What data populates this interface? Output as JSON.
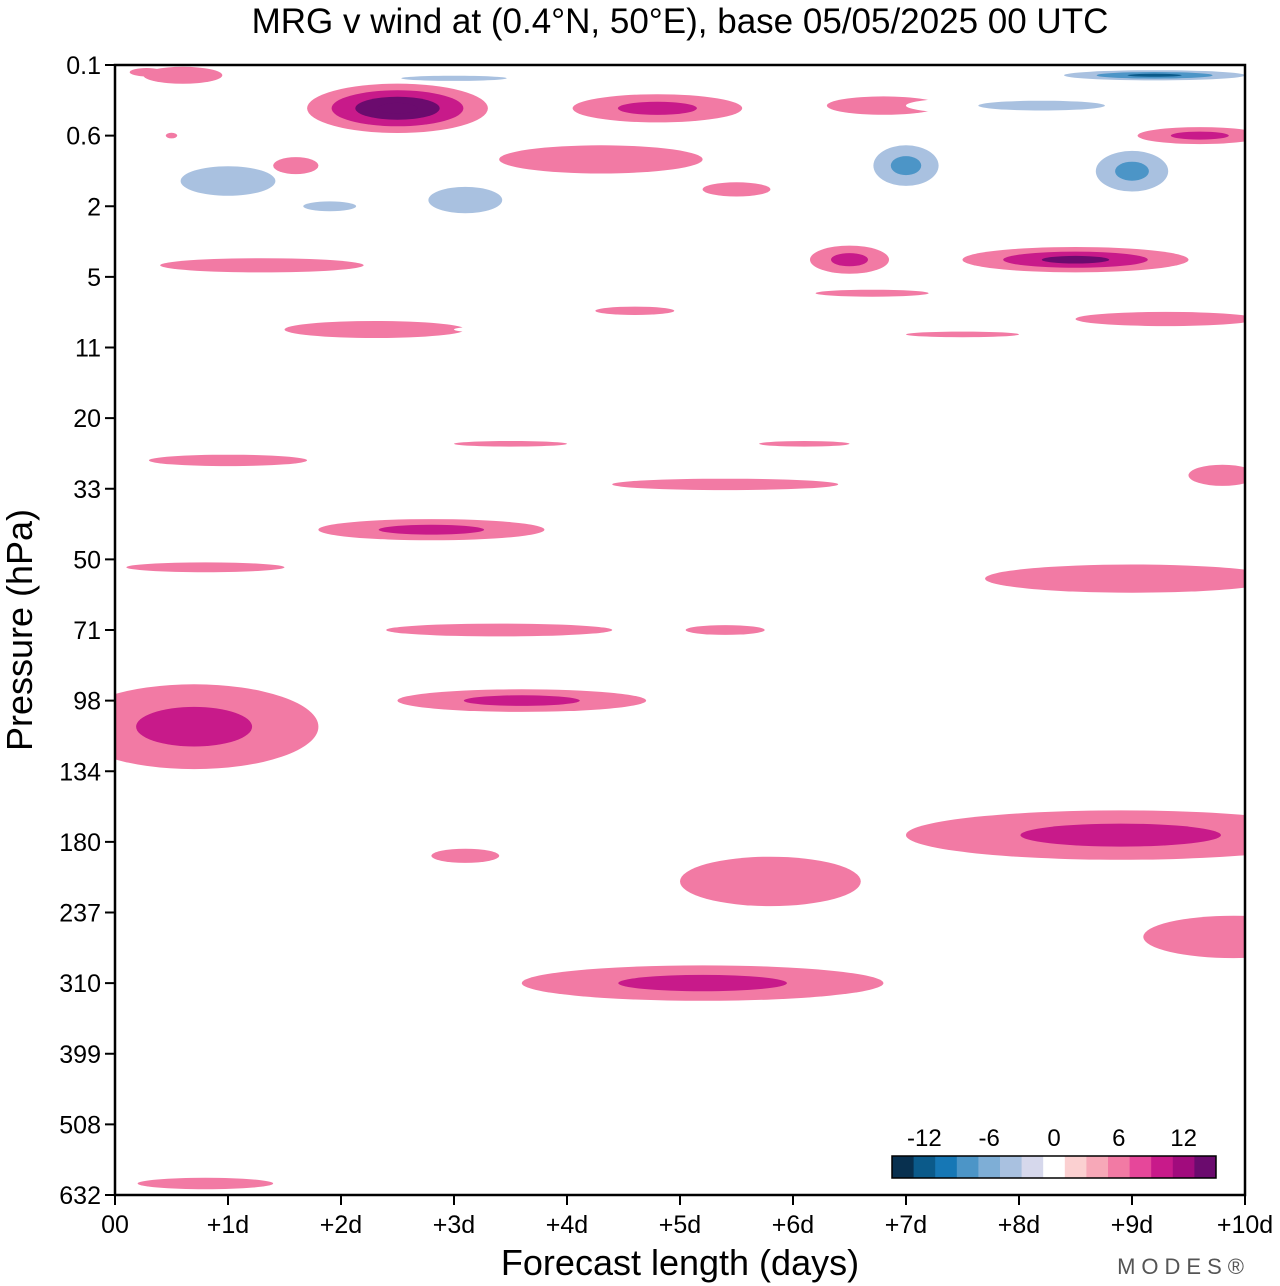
{
  "chart_data": {
    "type": "heatmap",
    "title": "MRG v wind at (0.4°N, 50°E),  base 05/05/2025  00 UTC",
    "xlabel": "Forecast length (days)",
    "ylabel": "Pressure (hPa)",
    "x_ticks": [
      "00",
      "+1d",
      "+2d",
      "+3d",
      "+4d",
      "+5d",
      "+6d",
      "+7d",
      "+8d",
      "+9d",
      "+10d"
    ],
    "xlim": [
      0,
      10
    ],
    "y_ticks": [
      "0.1",
      "0.6",
      "2",
      "5",
      "11",
      "20",
      "33",
      "50",
      "71",
      "98",
      "134",
      "180",
      "237",
      "310",
      "399",
      "508",
      "632"
    ],
    "ylim": [
      0.1,
      632
    ],
    "y_reversed": true,
    "colorbar": {
      "labels": [
        "-12",
        "-6",
        "0",
        "6",
        "12"
      ],
      "label_values": [
        -12,
        -6,
        0,
        6,
        12
      ],
      "levels": [
        -15,
        -13.5,
        -12,
        -10.5,
        -9,
        -7.5,
        -6,
        -4.5,
        -3,
        -1.5,
        1.5,
        3,
        4.5,
        6,
        7.5,
        9,
        10.5,
        12,
        13.5,
        15
      ],
      "colors": [
        "#08304f",
        "#0b5a8a",
        "#1677b5",
        "#4c95c7",
        "#7eaed6",
        "#a9c1e0",
        "#d6d8ec",
        "#ffffff",
        "#fbd0d1",
        "#f7a8b8",
        "#f27aa4",
        "#e6479a",
        "#c81a8a",
        "#a10b7d",
        "#6b0b6e"
      ]
    },
    "blobs": [
      {
        "day": 0.6,
        "p": 0.13,
        "dd": 0.35,
        "dl": 0.12,
        "v": [
          3
        ]
      },
      {
        "day": 0.28,
        "p": 0.12,
        "dd": 0.15,
        "dl": 0.06,
        "v": [
          3
        ]
      },
      {
        "day": 0.5,
        "p": 0.6,
        "dd": 0.05,
        "dl": 0.04,
        "v": [
          3
        ]
      },
      {
        "day": 1.0,
        "p": 1.3,
        "dd": 0.9,
        "dl": 0.45,
        "v": [
          -3,
          -6
        ]
      },
      {
        "day": 0.25,
        "p": 1.3,
        "dd": 0.3,
        "dl": 0.4,
        "v": [
          -3
        ]
      },
      {
        "day": 1.9,
        "p": 2.0,
        "dd": 0.5,
        "dl": 0.15,
        "v": [
          -3,
          -6
        ]
      },
      {
        "day": 1.9,
        "p": 0.4,
        "dd": 0.2,
        "dl": 0.25,
        "v": [
          -3
        ]
      },
      {
        "day": 2.5,
        "p": 0.3,
        "dd": 0.8,
        "dl": 0.35,
        "v": [
          3,
          6,
          9,
          12
        ]
      },
      {
        "day": 1.6,
        "p": 1.0,
        "dd": 0.2,
        "dl": 0.12,
        "v": [
          3
        ]
      },
      {
        "day": 3.0,
        "p": 0.14,
        "dd": 1.0,
        "dl": 0.08,
        "v": [
          -3,
          -6
        ]
      },
      {
        "day": 3.1,
        "p": 1.8,
        "dd": 0.7,
        "dl": 0.4,
        "v": [
          -3,
          -6
        ]
      },
      {
        "day": 4.0,
        "p": 2.6,
        "dd": 0.3,
        "dl": 0.15,
        "v": [
          -3
        ]
      },
      {
        "day": 4.3,
        "p": 0.9,
        "dd": 0.9,
        "dl": 0.2,
        "v": [
          3
        ]
      },
      {
        "day": 4.8,
        "p": 0.3,
        "dd": 0.75,
        "dl": 0.2,
        "v": [
          3,
          6
        ]
      },
      {
        "day": 6.0,
        "p": 2.2,
        "dd": 0.9,
        "dl": 0.3,
        "v": [
          -3
        ]
      },
      {
        "day": 5.5,
        "p": 1.5,
        "dd": 0.3,
        "dl": 0.1,
        "v": [
          3
        ]
      },
      {
        "day": 6.1,
        "p": 1.0,
        "dd": 0.25,
        "dl": 0.4,
        "v": [
          -3
        ]
      },
      {
        "day": 6.8,
        "p": 0.28,
        "dd": 0.5,
        "dl": 0.13,
        "v": [
          3
        ]
      },
      {
        "day": 7.0,
        "p": 1.0,
        "dd": 0.45,
        "dl": 0.45,
        "v": [
          -3,
          -6,
          -9
        ]
      },
      {
        "day": 6.5,
        "p": 4.0,
        "dd": 0.35,
        "dl": 0.2,
        "v": [
          3,
          6
        ]
      },
      {
        "day": 8.2,
        "p": 0.28,
        "dd": 1.2,
        "dl": 0.15,
        "v": [
          -3,
          -6
        ]
      },
      {
        "day": 9.2,
        "p": 0.13,
        "dd": 1.1,
        "dl": 0.1,
        "v": [
          -3,
          -6,
          -9,
          -12
        ]
      },
      {
        "day": 9.0,
        "p": 1.1,
        "dd": 0.5,
        "dl": 0.45,
        "v": [
          -3,
          -6,
          -9
        ]
      },
      {
        "day": 9.6,
        "p": 0.6,
        "dd": 0.55,
        "dl": 0.12,
        "v": [
          3,
          6
        ]
      },
      {
        "day": 8.5,
        "p": 4.0,
        "dd": 1.0,
        "dl": 0.18,
        "v": [
          3,
          6,
          9
        ]
      },
      {
        "day": 8.0,
        "p": 1.8,
        "dd": 0.2,
        "dl": 0.12,
        "v": [
          -3
        ]
      },
      {
        "day": 8.2,
        "p": 6.0,
        "dd": 0.8,
        "dl": 0.1,
        "v": [
          -3
        ]
      },
      {
        "day": 9.8,
        "p": 5.5,
        "dd": 0.6,
        "dl": 0.1,
        "v": [
          -3
        ]
      },
      {
        "day": 1.3,
        "p": 4.3,
        "dd": 0.9,
        "dl": 0.1,
        "v": [
          3
        ]
      },
      {
        "day": 0.6,
        "p": 8.0,
        "dd": 0.6,
        "dl": 0.15,
        "v": [
          -3
        ]
      },
      {
        "day": 2.3,
        "p": 9.0,
        "dd": 0.8,
        "dl": 0.12,
        "v": [
          3
        ]
      },
      {
        "day": 1.4,
        "p": 11.0,
        "dd": 0.9,
        "dl": 0.05,
        "v": [
          -3
        ]
      },
      {
        "day": 4.8,
        "p": 11.0,
        "dd": 3.0,
        "dl": 0.04,
        "v": [
          -3
        ]
      },
      {
        "day": 3.6,
        "p": 9.0,
        "dd": 0.6,
        "dl": 0.06,
        "v": [
          -3
        ]
      },
      {
        "day": 4.6,
        "p": 7.3,
        "dd": 0.35,
        "dl": 0.06,
        "v": [
          3
        ]
      },
      {
        "day": 6.7,
        "p": 6.0,
        "dd": 0.5,
        "dl": 0.05,
        "v": [
          3
        ]
      },
      {
        "day": 9.3,
        "p": 8.0,
        "dd": 0.8,
        "dl": 0.1,
        "v": [
          3
        ]
      },
      {
        "day": 7.5,
        "p": 9.5,
        "dd": 0.5,
        "dl": 0.04,
        "v": [
          3
        ]
      },
      {
        "day": 8.1,
        "p": 11.0,
        "dd": 1.2,
        "dl": 0.04,
        "v": [
          -3
        ]
      },
      {
        "day": 0.2,
        "p": 20.0,
        "dd": 0.4,
        "dl": 0.04,
        "v": [
          -3
        ]
      },
      {
        "day": 1.0,
        "p": 27.0,
        "dd": 0.7,
        "dl": 0.08,
        "v": [
          3
        ]
      },
      {
        "day": 2.3,
        "p": 23.0,
        "dd": 0.6,
        "dl": 0.07,
        "v": [
          -3
        ]
      },
      {
        "day": 3.5,
        "p": 24.0,
        "dd": 0.5,
        "dl": 0.04,
        "v": [
          3
        ]
      },
      {
        "day": 4.5,
        "p": 20.0,
        "dd": 0.5,
        "dl": 0.04,
        "v": [
          -3
        ]
      },
      {
        "day": 6.1,
        "p": 24.0,
        "dd": 0.4,
        "dl": 0.04,
        "v": [
          3
        ]
      },
      {
        "day": 5.4,
        "p": 32.0,
        "dd": 1.0,
        "dl": 0.08,
        "v": [
          3
        ]
      },
      {
        "day": 3.9,
        "p": 36.0,
        "dd": 0.9,
        "dl": 0.08,
        "v": [
          -3
        ]
      },
      {
        "day": 2.8,
        "p": 42.0,
        "dd": 1.0,
        "dl": 0.15,
        "v": [
          3,
          6
        ]
      },
      {
        "day": 1.7,
        "p": 47.0,
        "dd": 0.4,
        "dl": 0.05,
        "v": [
          -3
        ]
      },
      {
        "day": 0.8,
        "p": 52.0,
        "dd": 0.7,
        "dl": 0.07,
        "v": [
          3
        ]
      },
      {
        "day": 9.0,
        "p": 55.0,
        "dd": 1.3,
        "dl": 0.2,
        "v": [
          3
        ]
      },
      {
        "day": 9.8,
        "p": 30.0,
        "dd": 0.3,
        "dl": 0.15,
        "v": [
          3
        ]
      },
      {
        "day": 9.4,
        "p": 45.0,
        "dd": 0.5,
        "dl": 0.06,
        "v": [
          -3
        ]
      },
      {
        "day": 7.8,
        "p": 72.0,
        "dd": 1.5,
        "dl": 0.22,
        "v": [
          -3
        ]
      },
      {
        "day": 3.4,
        "p": 71.0,
        "dd": 1.0,
        "dl": 0.09,
        "v": [
          3
        ]
      },
      {
        "day": 5.4,
        "p": 71.0,
        "dd": 0.35,
        "dl": 0.07,
        "v": [
          3
        ]
      },
      {
        "day": 0.7,
        "p": 110.0,
        "dd": 1.1,
        "dl": 0.6,
        "v": [
          3,
          6
        ]
      },
      {
        "day": 3.6,
        "p": 98.0,
        "dd": 1.1,
        "dl": 0.16,
        "v": [
          3,
          6
        ]
      },
      {
        "day": 8.9,
        "p": 175.0,
        "dd": 1.9,
        "dl": 0.35,
        "v": [
          3,
          6
        ]
      },
      {
        "day": 9.9,
        "p": 260.0,
        "dd": 0.8,
        "dl": 0.3,
        "v": [
          3
        ]
      },
      {
        "day": 5.8,
        "p": 210.0,
        "dd": 0.8,
        "dl": 0.35,
        "v": [
          3
        ]
      },
      {
        "day": 5.2,
        "p": 310.0,
        "dd": 1.6,
        "dl": 0.25,
        "v": [
          3,
          6
        ]
      },
      {
        "day": 3.1,
        "p": 190.0,
        "dd": 0.3,
        "dl": 0.1,
        "v": [
          3
        ]
      },
      {
        "day": 1.7,
        "p": 240.0,
        "dd": 0.9,
        "dl": 0.12,
        "v": [
          -3
        ]
      },
      {
        "day": 0.4,
        "p": 370.0,
        "dd": 0.4,
        "dl": 0.15,
        "v": [
          -3
        ]
      },
      {
        "day": 7.0,
        "p": 410.0,
        "dd": 0.6,
        "dl": 0.18,
        "v": [
          -3
        ]
      },
      {
        "day": 0.8,
        "p": 610.0,
        "dd": 0.6,
        "dl": 0.08,
        "v": [
          3
        ]
      },
      {
        "day": 3.2,
        "p": 650.0,
        "dd": 0.6,
        "dl": 0.04,
        "v": [
          -3
        ]
      }
    ]
  },
  "brand": "MODES®"
}
